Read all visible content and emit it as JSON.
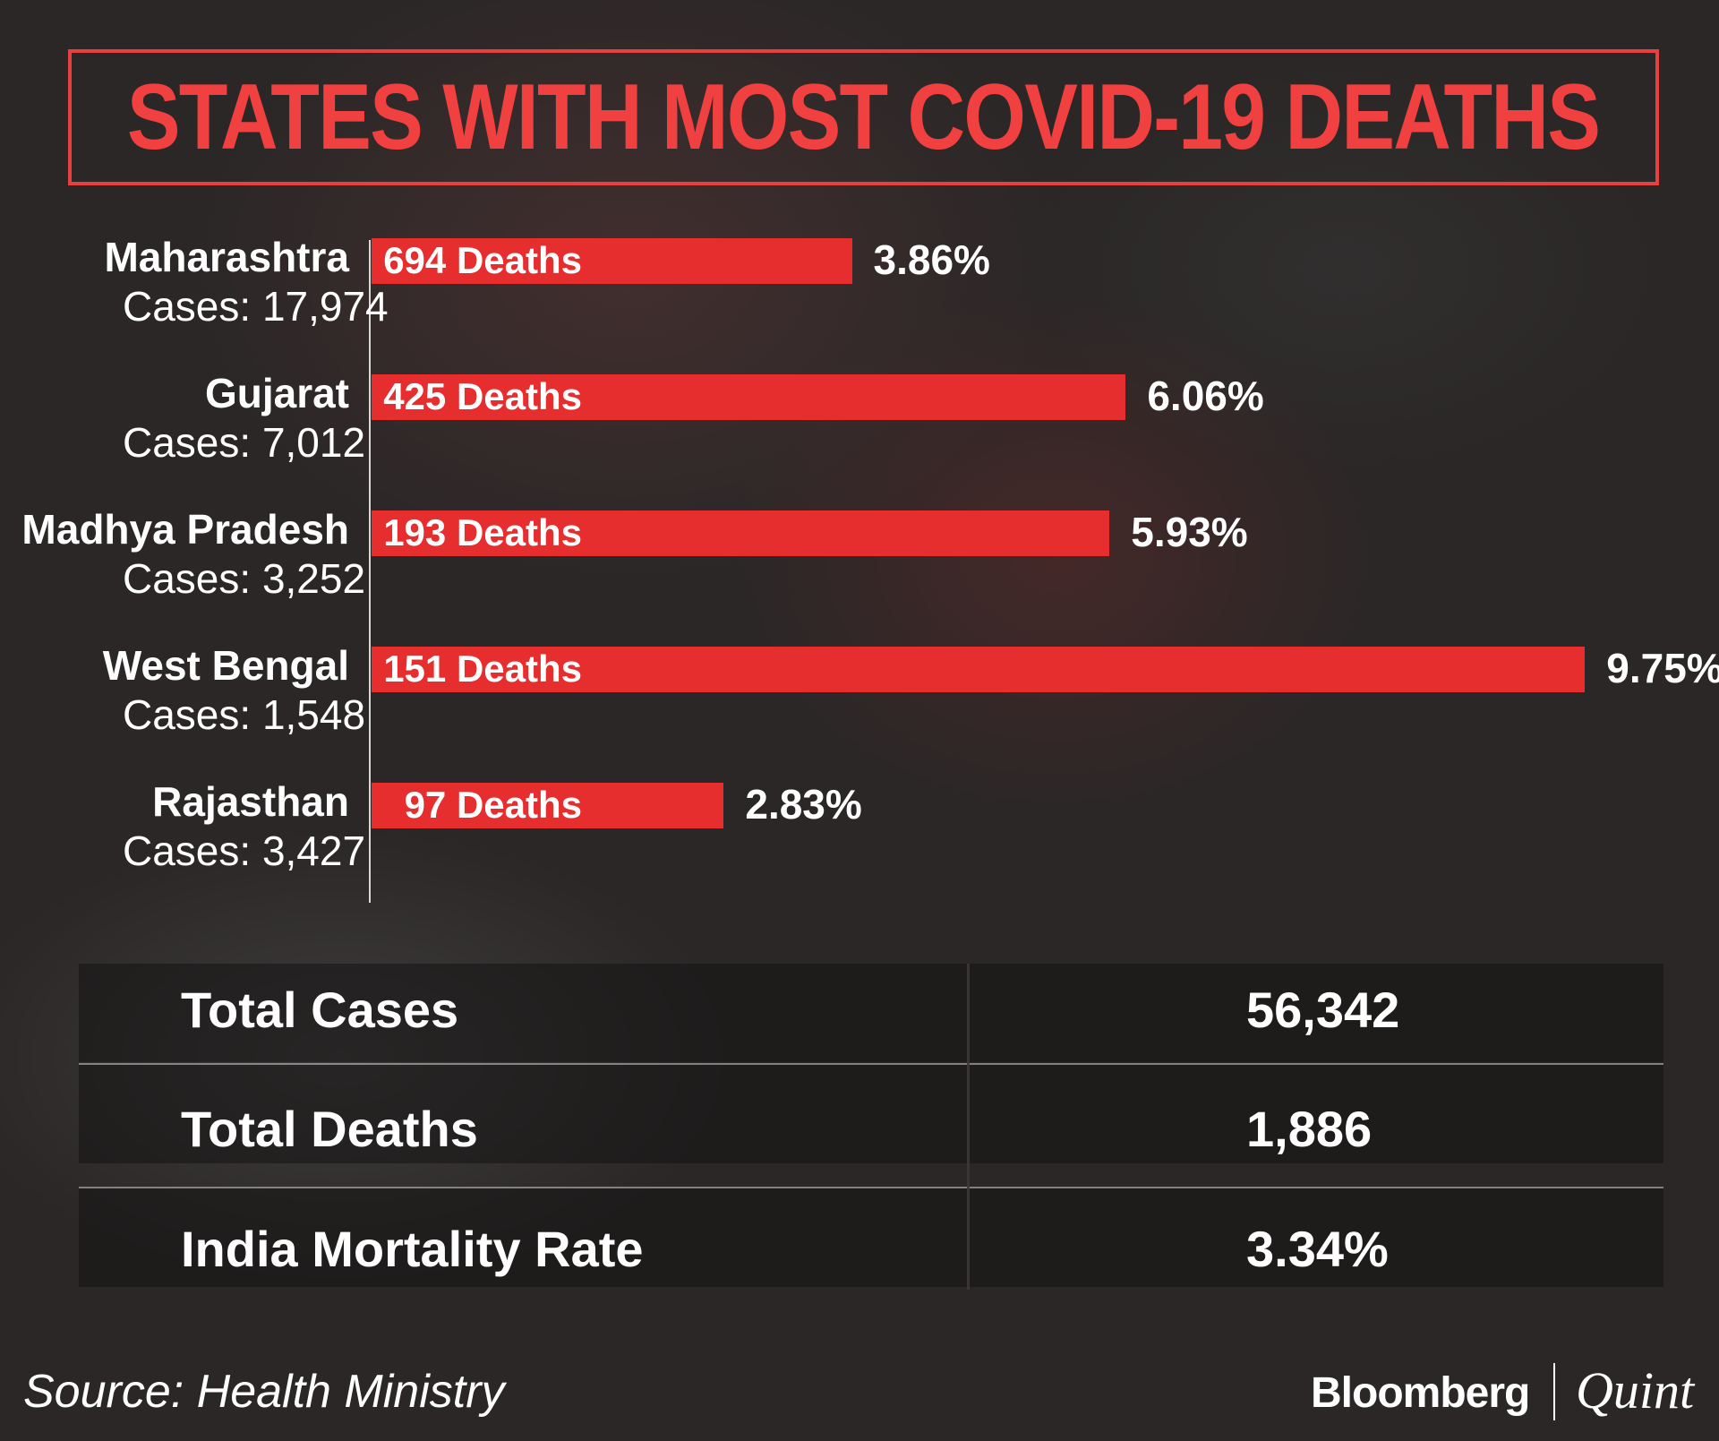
{
  "title": "STATES WITH MOST COVID-19 DEATHS",
  "chart_data": {
    "type": "bar",
    "orientation": "horizontal",
    "title": "STATES WITH MOST COVID-19 DEATHS",
    "categories": [
      "Maharashtra",
      "Gujarat",
      "Madhya Pradesh",
      "West Bengal",
      "Rajasthan"
    ],
    "cases_labels": [
      "Cases: 17,974",
      "Cases: 7,012",
      "Cases: 3,252",
      "Cases: 1,548",
      "Cases: 3,427"
    ],
    "cases": [
      17974,
      7012,
      3252,
      1548,
      3427
    ],
    "deaths": [
      694,
      425,
      193,
      151,
      97
    ],
    "death_labels": [
      "694 Deaths",
      "425 Deaths",
      "193 Deaths",
      "151 Deaths",
      "97 Deaths"
    ],
    "values": [
      3.86,
      6.06,
      5.93,
      9.75,
      2.83
    ],
    "value_labels": [
      "3.86%",
      "6.06%",
      "5.93%",
      "9.75%",
      "2.83%"
    ],
    "xlim": [
      0,
      10
    ],
    "grid": false,
    "bar_color": "#e62e2e"
  },
  "summary": [
    {
      "label": "Total Cases",
      "value": "56,342"
    },
    {
      "label": "Total Deaths",
      "value": "1,886"
    },
    {
      "label": "India Mortality Rate",
      "value": "3.34%"
    }
  ],
  "source": "Source: Health Ministry",
  "logo": {
    "left": "Bloomberg",
    "right": "Quint"
  },
  "colors": {
    "accent": "#e8403f",
    "background": "#2b2727"
  }
}
